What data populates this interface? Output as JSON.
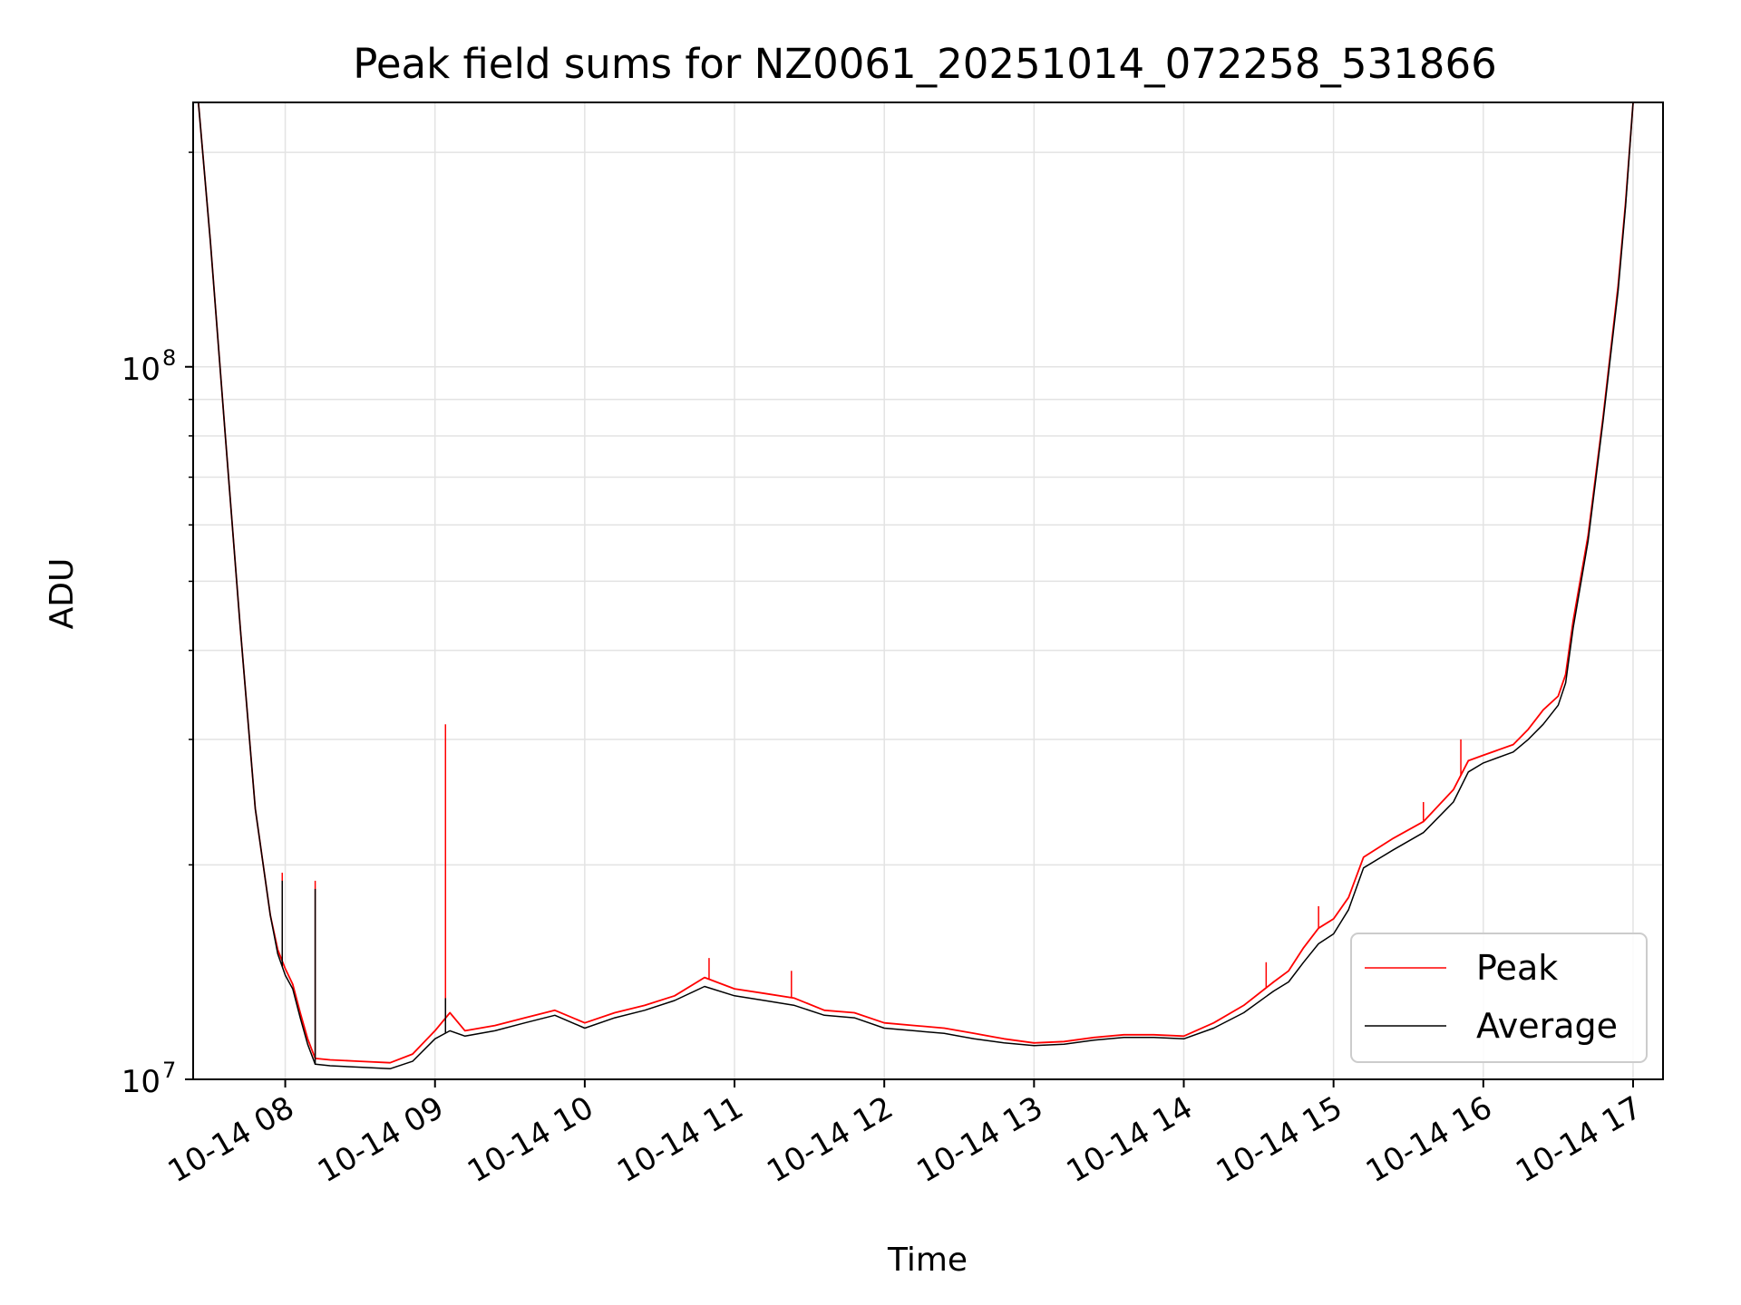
{
  "chart_data": {
    "type": "line",
    "title": "Peak field sums for NZ0061_20251014_072258_531866",
    "xlabel": "Time",
    "ylabel": "ADU",
    "y_scale": "log",
    "ylim": [
      10000000,
      235000000
    ],
    "xlim_hours": [
      7.385,
      17.2
    ],
    "grid": true,
    "legend_position": "lower-right",
    "x_ticks": [
      {
        "hour": 8,
        "label": "10-14 08"
      },
      {
        "hour": 9,
        "label": "10-14 09"
      },
      {
        "hour": 10,
        "label": "10-14 10"
      },
      {
        "hour": 11,
        "label": "10-14 11"
      },
      {
        "hour": 12,
        "label": "10-14 12"
      },
      {
        "hour": 13,
        "label": "10-14 13"
      },
      {
        "hour": 14,
        "label": "10-14 14"
      },
      {
        "hour": 15,
        "label": "10-14 15"
      },
      {
        "hour": 16,
        "label": "10-14 16"
      },
      {
        "hour": 17,
        "label": "10-14 17"
      }
    ],
    "y_ticks": [
      {
        "value": 10000000,
        "base": "10",
        "exp": "7"
      },
      {
        "value": 100000000,
        "base": "10",
        "exp": "8"
      }
    ],
    "series": [
      {
        "name": "Peak",
        "color": "#ff0000",
        "x_hours": [
          7.42,
          7.5,
          7.6,
          7.7,
          7.8,
          7.9,
          7.95,
          8.0,
          8.05,
          8.1,
          8.15,
          8.2,
          8.3,
          8.5,
          8.7,
          8.85,
          9.0,
          9.1,
          9.2,
          9.4,
          9.6,
          9.8,
          10.0,
          10.2,
          10.4,
          10.6,
          10.8,
          11.0,
          11.2,
          11.4,
          11.6,
          11.8,
          12.0,
          12.2,
          12.4,
          12.6,
          12.8,
          13.0,
          13.2,
          13.4,
          13.6,
          13.8,
          14.0,
          14.2,
          14.4,
          14.6,
          14.7,
          14.8,
          14.9,
          15.0,
          15.1,
          15.2,
          15.4,
          15.6,
          15.8,
          15.9,
          16.0,
          16.2,
          16.3,
          16.4,
          16.5,
          16.55,
          16.6,
          16.7,
          16.8,
          16.9,
          16.95,
          17.0
        ],
        "values": [
          235000000,
          150000000,
          80000000,
          43000000,
          24000000,
          17000000,
          15200000,
          14300000,
          13600000,
          12400000,
          11400000,
          10700000,
          10650000,
          10600000,
          10550000,
          10850000,
          11700000,
          12400000,
          11700000,
          11900000,
          12200000,
          12500000,
          12000000,
          12400000,
          12700000,
          13100000,
          13900000,
          13400000,
          13200000,
          13000000,
          12500000,
          12400000,
          12000000,
          11900000,
          11800000,
          11600000,
          11400000,
          11250000,
          11300000,
          11450000,
          11550000,
          11550000,
          11500000,
          12000000,
          12700000,
          13700000,
          14200000,
          15300000,
          16300000,
          16800000,
          18000000,
          20500000,
          21800000,
          23000000,
          25500000,
          28000000,
          28500000,
          29500000,
          31000000,
          33000000,
          34500000,
          37000000,
          44000000,
          58000000,
          85000000,
          130000000,
          170000000,
          235000000
        ],
        "spikes": [
          {
            "x": 7.98,
            "v": 19500000
          },
          {
            "x": 8.2,
            "v": 19000000
          },
          {
            "x": 9.07,
            "v": 31500000
          },
          {
            "x": 10.83,
            "v": 14800000
          },
          {
            "x": 11.38,
            "v": 14200000
          },
          {
            "x": 14.55,
            "v": 14600000
          },
          {
            "x": 14.9,
            "v": 17500000
          },
          {
            "x": 15.6,
            "v": 24500000
          },
          {
            "x": 15.85,
            "v": 30000000
          }
        ]
      },
      {
        "name": "Average",
        "color": "#000000",
        "x_hours": [
          7.42,
          7.5,
          7.6,
          7.7,
          7.8,
          7.9,
          7.95,
          8.0,
          8.05,
          8.1,
          8.15,
          8.2,
          8.3,
          8.5,
          8.7,
          8.85,
          9.0,
          9.1,
          9.2,
          9.4,
          9.6,
          9.8,
          10.0,
          10.2,
          10.4,
          10.6,
          10.8,
          11.0,
          11.2,
          11.4,
          11.6,
          11.8,
          12.0,
          12.2,
          12.4,
          12.6,
          12.8,
          13.0,
          13.2,
          13.4,
          13.6,
          13.8,
          14.0,
          14.2,
          14.4,
          14.6,
          14.7,
          14.8,
          14.9,
          15.0,
          15.1,
          15.2,
          15.4,
          15.6,
          15.8,
          15.9,
          16.0,
          16.2,
          16.3,
          16.4,
          16.5,
          16.55,
          16.6,
          16.7,
          16.8,
          16.9,
          16.95,
          17.0
        ],
        "values": [
          235000000,
          150000000,
          80000000,
          43000000,
          24000000,
          17000000,
          15000000,
          14000000,
          13400000,
          12200000,
          11200000,
          10500000,
          10450000,
          10400000,
          10350000,
          10600000,
          11400000,
          11700000,
          11500000,
          11700000,
          12000000,
          12300000,
          11800000,
          12200000,
          12500000,
          12900000,
          13500000,
          13100000,
          12900000,
          12700000,
          12300000,
          12200000,
          11800000,
          11700000,
          11600000,
          11400000,
          11250000,
          11150000,
          11200000,
          11350000,
          11450000,
          11450000,
          11400000,
          11800000,
          12400000,
          13300000,
          13700000,
          14600000,
          15500000,
          16000000,
          17300000,
          19800000,
          21000000,
          22200000,
          24500000,
          27000000,
          27800000,
          28800000,
          30000000,
          31500000,
          33500000,
          36000000,
          43000000,
          57000000,
          84000000,
          128000000,
          168000000,
          235000000
        ],
        "spikes": [
          {
            "x": 7.98,
            "v": 19000000
          },
          {
            "x": 8.2,
            "v": 18500000
          },
          {
            "x": 9.07,
            "v": 13000000
          }
        ]
      }
    ]
  }
}
